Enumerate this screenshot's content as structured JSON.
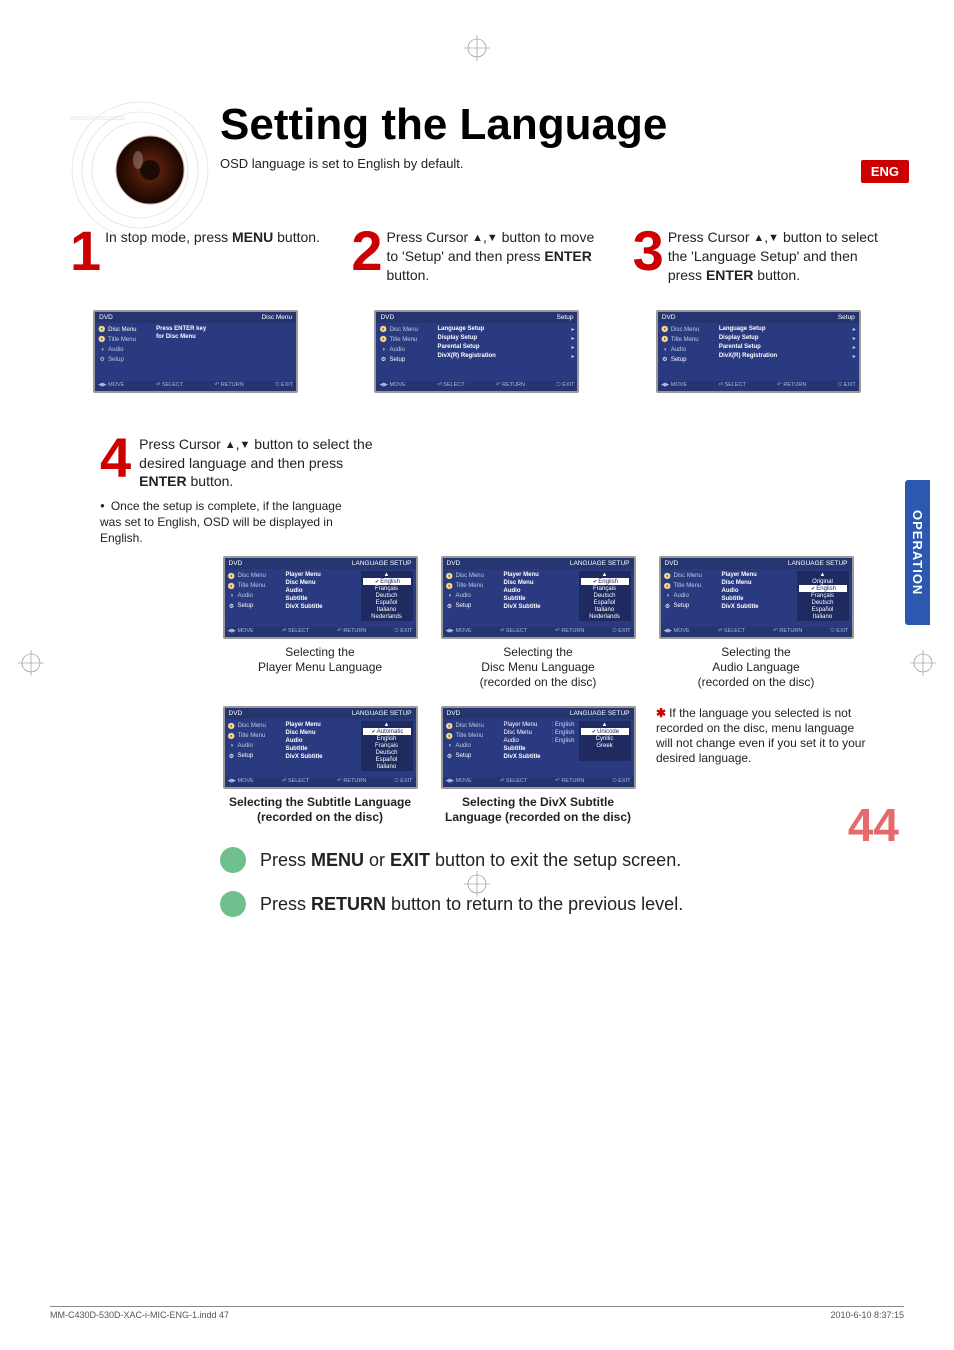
{
  "page": {
    "title": "Setting the Language",
    "lang_badge": "ENG",
    "subtitle": "OSD language is set to English by default.",
    "side_tab": "OPERATION",
    "page_number": "44"
  },
  "steps": [
    {
      "num": "1",
      "text_html": "In stop mode, press <b>MENU</b> button."
    },
    {
      "num": "2",
      "text_html": "Press Cursor <span class='arrow-glyph'>▲</span>,<span class='arrow-glyph'>▼</span> button to move to 'Setup' and then press <b>ENTER</b> button."
    },
    {
      "num": "3",
      "text_html": "Press Cursor <span class='arrow-glyph'>▲</span>,<span class='arrow-glyph'>▼</span> button to select the 'Language Setup' and then press <b>ENTER</b> button."
    }
  ],
  "step4": {
    "num": "4",
    "text_html": "Press Cursor <span class='arrow-glyph'>▲</span>,<span class='arrow-glyph'>▼</span> button to select the desired language and then press <b>ENTER</b> button."
  },
  "note": "Once the setup is complete, if the language was set to English, OSD will be displayed in English.",
  "osd_common": {
    "brand": "DVD",
    "side": {
      "disc_menu": "Disc Menu",
      "title_menu": "Title Menu",
      "audio": "Audio",
      "setup": "Setup"
    },
    "footer": {
      "move": "MOVE",
      "select": "SELECT",
      "return": "RETURN",
      "exit": "EXIT"
    }
  },
  "osd1": {
    "corner_label": "Disc Menu",
    "message_l1": "Press ENTER key",
    "message_l2": "for Disc Menu"
  },
  "osd_setup": {
    "corner_label": "Setup",
    "items": [
      "Language Setup",
      "Display Setup",
      "Parental Setup",
      "DivX(R) Registration"
    ]
  },
  "osd_lang_header": "LANGUAGE SETUP",
  "lang_items": {
    "player_menu": "Player Menu",
    "disc_menu": "Disc Menu",
    "audio": "Audio",
    "subtitle": "Subtitle",
    "divx_subtitle": "DivX Subtitle"
  },
  "lang_options_en": [
    "English",
    "Français",
    "Deutsch",
    "Español",
    "Italiano",
    "Nederlands"
  ],
  "lang_options_audio": [
    "Original",
    "English",
    "Français",
    "Deutsch",
    "Español",
    "Italiano"
  ],
  "lang_options_sub": [
    "Automatic",
    "English",
    "Français",
    "Deutsch",
    "Español",
    "Italiano"
  ],
  "lang_options_divx": [
    "Unicode",
    "Cyrillic",
    "Greek"
  ],
  "lang_divx_values": {
    "player": "English",
    "disc": "English",
    "audio": "English"
  },
  "lang_captions": {
    "player": "Selecting the\nPlayer Menu Language",
    "disc": "Selecting the\nDisc Menu Language\n(recorded on the disc)",
    "audio": "Selecting the\nAudio Language\n(recorded on the disc)",
    "subtitle": "Selecting the Subtitle Language\n(recorded on the disc)",
    "divx": "Selecting the DivX Subtitle\nLanguage (recorded on the disc)"
  },
  "star_note": "If the language you selected is not recorded on the disc, menu language will not change even if you set it to your desired language.",
  "footer_lines": [
    "Press <b>MENU</b> or  <b>EXIT</b> button to exit the setup screen.",
    "Press <b>RETURN</b> button to return to the previous level."
  ],
  "print_footer": {
    "left": "MM-C430D-530D-XAC-i-MIC-ENG-1.indd   47",
    "right": "2010-6-10   8:37:15"
  },
  "colors": {
    "accent_red": "#cc0000",
    "osd_blue": "#2a3a80",
    "side_tab_blue": "#2d58b0",
    "circle_green": "#6fc08c",
    "page_num_red": "#e56a6a"
  }
}
